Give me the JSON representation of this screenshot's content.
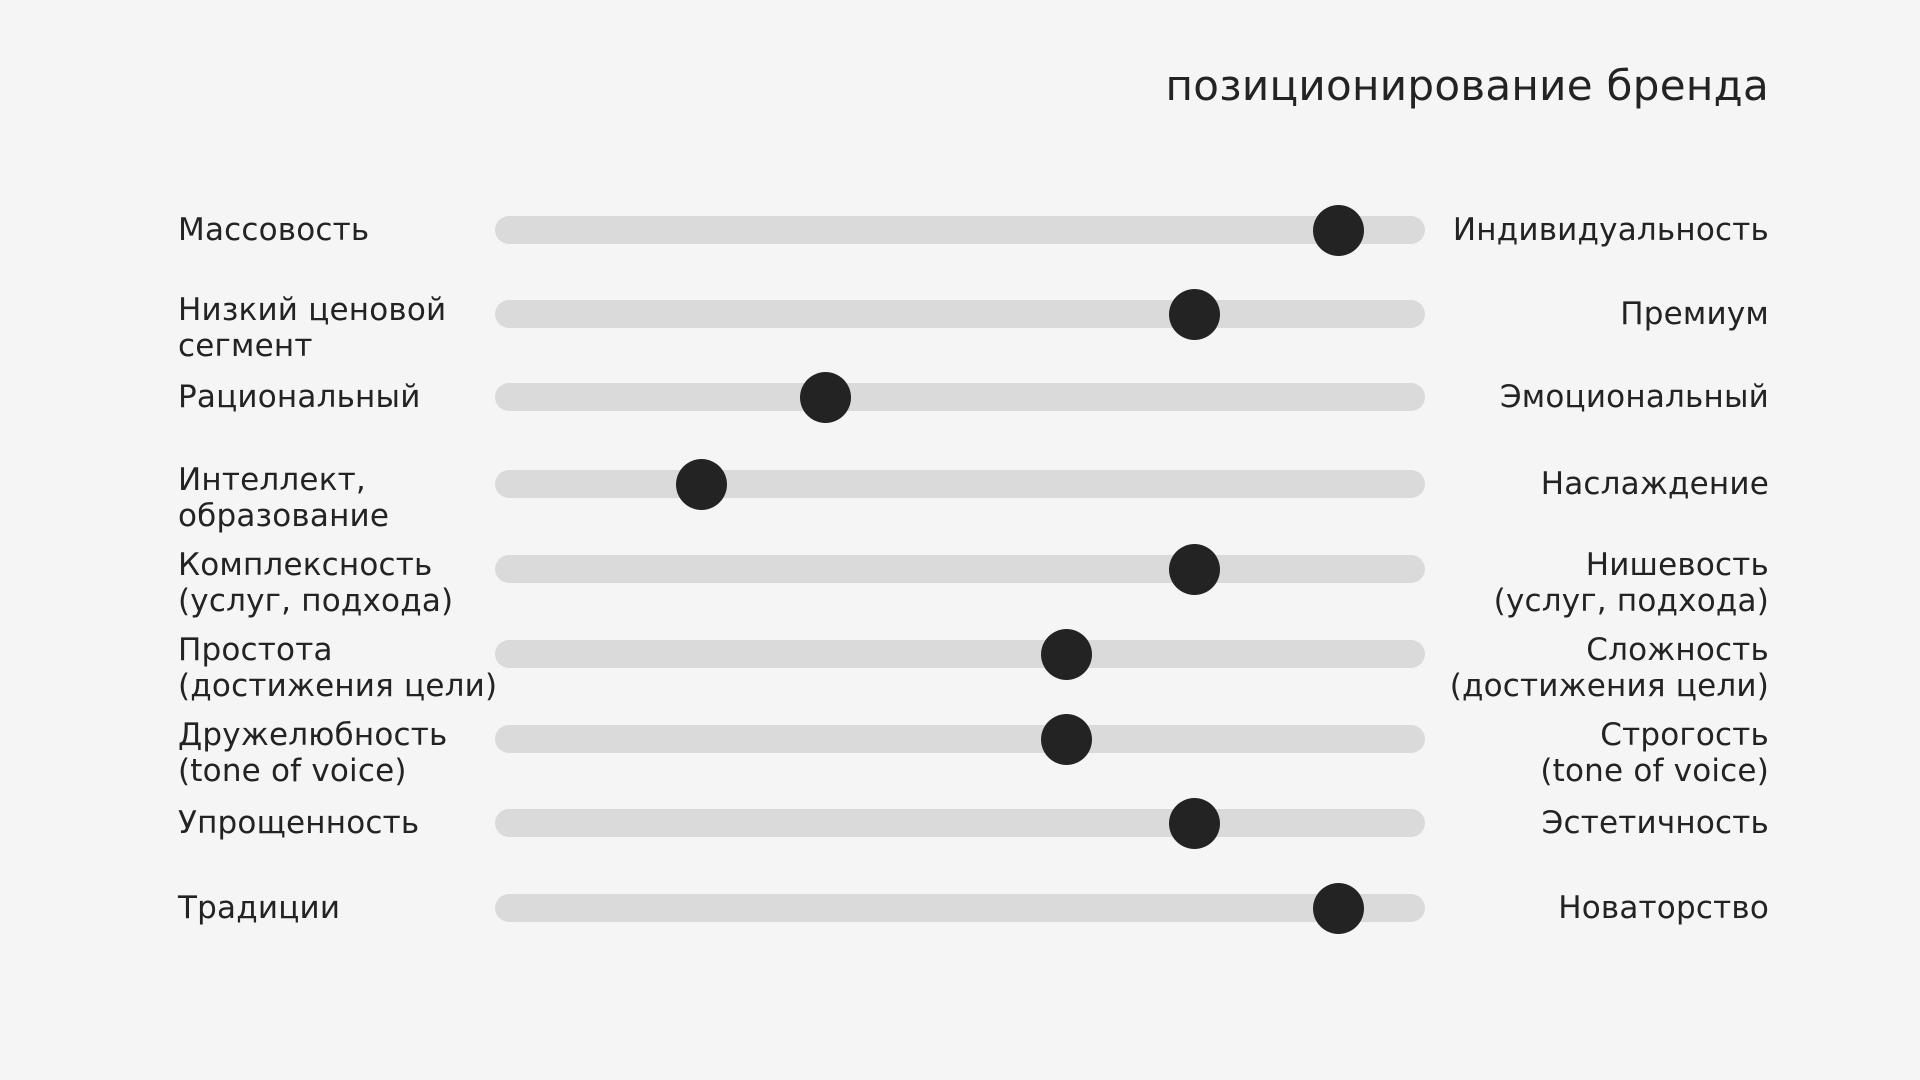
{
  "title": "позиционирование бренда",
  "scales": [
    {
      "left": "Массовость",
      "right": "Индивидуальность",
      "value": 0.907
    },
    {
      "left": "Низкий ценовой\nсегмент",
      "right": "Премиум",
      "value": 0.752
    },
    {
      "left": "Рациональный",
      "right": "Эмоциональный",
      "value": 0.355
    },
    {
      "left": "Интеллект,\nобразование",
      "right": "Наслаждение",
      "value": 0.222
    },
    {
      "left": "Комплексность\n(услуг, подхода)",
      "right": "Нишевость\n(услуг, подхода)",
      "value": 0.752
    },
    {
      "left": "Простота\n(достижения цели)",
      "right": "Сложность\n(достижения цели)",
      "value": 0.615
    },
    {
      "left": "Дружелюбность\n(tone of voice)",
      "right": "Строгость\n(tone of voice)",
      "value": 0.615
    },
    {
      "left": "Упрощенность",
      "right": "Эстетичность",
      "value": 0.752
    },
    {
      "left": "Традиции",
      "right": "Новаторство",
      "value": 0.907
    }
  ],
  "colors": {
    "background": "#f5f5f5",
    "track": "#dadada",
    "knob": "#232323",
    "text": "#232323"
  }
}
